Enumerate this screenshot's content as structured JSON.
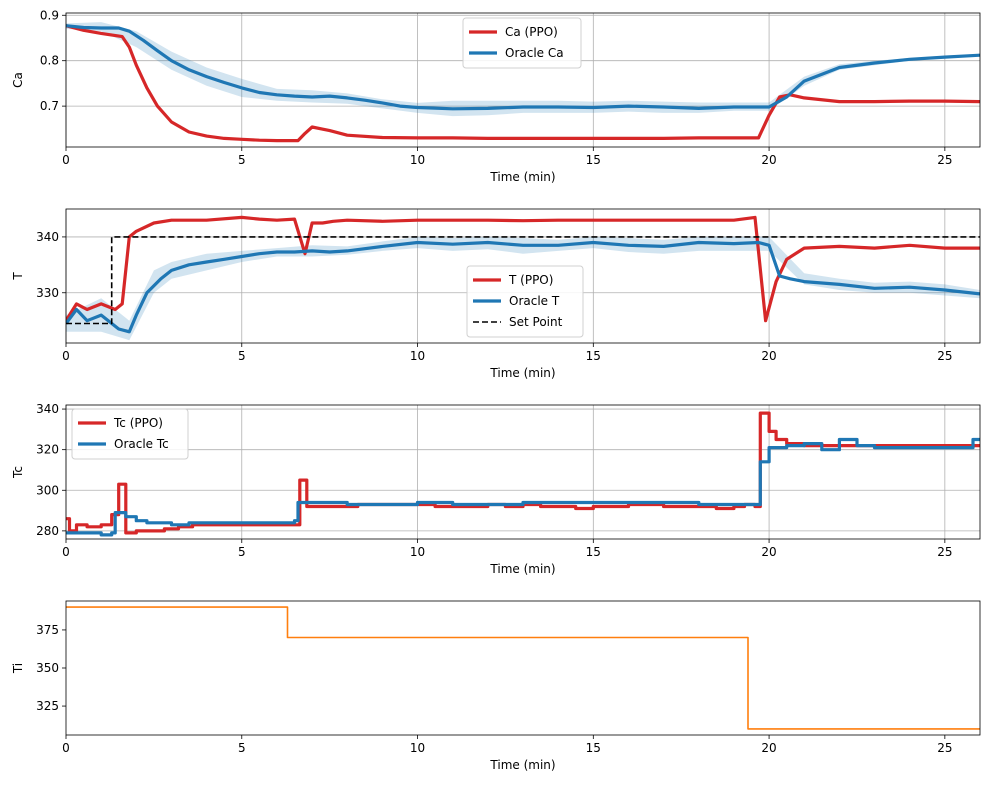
{
  "chart_data": [
    {
      "type": "line",
      "xlabel": "Time (min)",
      "ylabel": "Ca",
      "xlim": [
        0,
        26
      ],
      "ylim": [
        0.61,
        0.905
      ],
      "xticks": [
        0,
        5,
        10,
        15,
        20,
        25
      ],
      "yticks": [
        0.7,
        0.8,
        0.9
      ],
      "ytick_labels": [
        "0.7",
        "0.8",
        "0.9"
      ],
      "grid": true,
      "legend": "top-center",
      "series": [
        {
          "name": "Ca (PPO)",
          "color": "#d62728",
          "style": "solid",
          "x": [
            0,
            0.5,
            1,
            1.6,
            1.8,
            2.0,
            2.3,
            2.6,
            3.0,
            3.5,
            4,
            4.5,
            5,
            5.5,
            6,
            6.6,
            6.8,
            7.0,
            7.5,
            8,
            9,
            10,
            11,
            12,
            13,
            14,
            15,
            16,
            17,
            18,
            19,
            19.7,
            20.0,
            20.3,
            20.6,
            21,
            22,
            23,
            24,
            25,
            26
          ],
          "y": [
            0.877,
            0.867,
            0.86,
            0.853,
            0.83,
            0.79,
            0.74,
            0.7,
            0.665,
            0.643,
            0.634,
            0.629,
            0.627,
            0.625,
            0.624,
            0.624,
            0.64,
            0.654,
            0.646,
            0.636,
            0.631,
            0.63,
            0.63,
            0.629,
            0.629,
            0.629,
            0.629,
            0.629,
            0.629,
            0.63,
            0.63,
            0.63,
            0.68,
            0.72,
            0.725,
            0.718,
            0.71,
            0.71,
            0.711,
            0.711,
            0.71
          ]
        },
        {
          "name": "Oracle Ca",
          "color": "#1f77b4",
          "style": "solid",
          "x": [
            0,
            0.5,
            1,
            1.5,
            1.8,
            2.2,
            2.6,
            3,
            3.5,
            4,
            4.5,
            5,
            5.5,
            6,
            6.5,
            7,
            7.5,
            8,
            8.5,
            9,
            9.5,
            10,
            11,
            12,
            13,
            14,
            15,
            16,
            17,
            18,
            19,
            20,
            20.5,
            21,
            22,
            23,
            24,
            25,
            26
          ],
          "y": [
            0.877,
            0.873,
            0.872,
            0.872,
            0.865,
            0.845,
            0.822,
            0.8,
            0.78,
            0.765,
            0.752,
            0.74,
            0.73,
            0.725,
            0.722,
            0.72,
            0.722,
            0.718,
            0.713,
            0.707,
            0.7,
            0.697,
            0.694,
            0.695,
            0.698,
            0.698,
            0.697,
            0.7,
            0.698,
            0.695,
            0.698,
            0.698,
            0.72,
            0.755,
            0.785,
            0.795,
            0.803,
            0.808,
            0.812
          ]
        }
      ],
      "band": {
        "series": "Oracle Ca",
        "color": "#1f77b4",
        "x": [
          0,
          1,
          2,
          3,
          4,
          5,
          6,
          7,
          8,
          9,
          10,
          11,
          12,
          13,
          14,
          15,
          16,
          17,
          18,
          19,
          20,
          21,
          22,
          23,
          24,
          25,
          26
        ],
        "lower": [
          0.87,
          0.865,
          0.83,
          0.78,
          0.745,
          0.72,
          0.712,
          0.708,
          0.705,
          0.695,
          0.685,
          0.678,
          0.68,
          0.685,
          0.685,
          0.685,
          0.688,
          0.685,
          0.685,
          0.69,
          0.69,
          0.745,
          0.78,
          0.79,
          0.8,
          0.805,
          0.81
        ],
        "upper": [
          0.882,
          0.885,
          0.865,
          0.82,
          0.785,
          0.76,
          0.738,
          0.735,
          0.728,
          0.715,
          0.707,
          0.712,
          0.712,
          0.712,
          0.712,
          0.71,
          0.712,
          0.71,
          0.708,
          0.708,
          0.708,
          0.765,
          0.792,
          0.8,
          0.806,
          0.811,
          0.815
        ]
      }
    },
    {
      "type": "line",
      "xlabel": "Time (min)",
      "ylabel": "T",
      "xlim": [
        0,
        26
      ],
      "ylim": [
        321,
        345
      ],
      "xticks": [
        0,
        5,
        10,
        15,
        20,
        25
      ],
      "yticks": [
        330,
        340
      ],
      "ytick_labels": [
        "330",
        "340"
      ],
      "grid": true,
      "legend": "bottom-center",
      "series": [
        {
          "name": "T (PPO)",
          "color": "#d62728",
          "style": "solid",
          "x": [
            0,
            0.3,
            0.6,
            1.0,
            1.4,
            1.6,
            1.8,
            2.0,
            2.5,
            3,
            4,
            5,
            5.5,
            6,
            6.5,
            6.8,
            7.0,
            7.3,
            7.6,
            8,
            9,
            10,
            11,
            12,
            13,
            14,
            15,
            16,
            17,
            18,
            19,
            19.6,
            19.9,
            20.2,
            20.5,
            21,
            22,
            23,
            24,
            25,
            26
          ],
          "y": [
            325,
            328,
            327,
            328,
            327,
            328,
            340,
            341,
            342.5,
            343,
            343,
            343.5,
            343.2,
            343,
            343.2,
            337,
            342.5,
            342.5,
            342.8,
            343,
            342.8,
            343,
            343,
            343,
            342.9,
            343,
            343,
            343,
            343,
            343,
            343,
            343.5,
            325,
            332,
            336,
            338,
            338.3,
            338,
            338.5,
            338,
            338
          ]
        },
        {
          "name": "Oracle T",
          "color": "#1f77b4",
          "style": "solid",
          "x": [
            0,
            0.3,
            0.6,
            1.0,
            1.5,
            1.8,
            2.0,
            2.3,
            2.7,
            3,
            3.5,
            4,
            4.5,
            5,
            5.5,
            6,
            6.5,
            7,
            7.5,
            8,
            9,
            10,
            11,
            12,
            13,
            14,
            15,
            16,
            17,
            18,
            19,
            19.7,
            20.0,
            20.3,
            20.6,
            21,
            22,
            23,
            24,
            25,
            26
          ],
          "y": [
            324.5,
            327,
            325,
            326,
            323.5,
            323,
            326,
            330,
            332.5,
            334,
            335,
            335.5,
            336,
            336.5,
            337,
            337.3,
            337.3,
            337.5,
            337.3,
            337.5,
            338.3,
            339,
            338.7,
            339,
            338.5,
            338.5,
            339,
            338.5,
            338.3,
            339,
            338.8,
            339,
            338.5,
            333,
            332.5,
            332,
            331.5,
            330.8,
            331,
            330.5,
            329.8
          ]
        },
        {
          "name": "Set Point",
          "color": "#000000",
          "style": "dashed",
          "step": true,
          "x": [
            0,
            1.3,
            1.3,
            26
          ],
          "y": [
            324.5,
            324.5,
            340,
            340
          ]
        }
      ],
      "band": {
        "series": "Oracle T",
        "color": "#1f77b4",
        "x": [
          0,
          1,
          1.8,
          2.5,
          3,
          4,
          5,
          6,
          7,
          8,
          9,
          10,
          11,
          12,
          13,
          14,
          15,
          16,
          17,
          18,
          19,
          20,
          21,
          22,
          23,
          24,
          25,
          26
        ],
        "lower": [
          323,
          323,
          321.5,
          330,
          332.5,
          334,
          335.5,
          336.5,
          336.5,
          336.8,
          337.5,
          338,
          337.5,
          337.8,
          337,
          337.5,
          338,
          337.3,
          337,
          337.5,
          337.5,
          337.5,
          331.5,
          330.5,
          330,
          330,
          329.5,
          329
        ],
        "upper": [
          326,
          329,
          325,
          334,
          335.5,
          337,
          337.5,
          338,
          338.5,
          338.3,
          339.2,
          340,
          339.8,
          340,
          339.8,
          339.5,
          340,
          339.8,
          339.5,
          340,
          340,
          340,
          333.5,
          332.5,
          331.8,
          332,
          331.5,
          330.5
        ]
      }
    },
    {
      "type": "line",
      "xlabel": "Time (min)",
      "ylabel": "Tc",
      "xlim": [
        0,
        26
      ],
      "ylim": [
        276,
        342
      ],
      "xticks": [
        0,
        5,
        10,
        15,
        20,
        25
      ],
      "yticks": [
        280,
        300,
        320,
        340
      ],
      "ytick_labels": [
        "280",
        "300",
        "320",
        "340"
      ],
      "grid": true,
      "legend": "top-left",
      "series": [
        {
          "name": "Tc (PPO)",
          "color": "#d62728",
          "style": "solid",
          "step": true,
          "x": [
            0,
            0.1,
            0.3,
            0.6,
            1.0,
            1.3,
            1.5,
            1.7,
            2.0,
            2.5,
            2.8,
            3.2,
            3.6,
            4.0,
            4.5,
            5,
            5.5,
            6,
            6.5,
            6.65,
            6.85,
            7.3,
            7.8,
            8.3,
            9,
            10,
            10.5,
            11,
            11.5,
            12,
            12.5,
            13,
            13.5,
            14,
            14.5,
            15,
            15.5,
            16,
            16.5,
            17,
            17.5,
            18,
            18.5,
            19,
            19.3,
            19.6,
            19.75,
            20.0,
            20.2,
            20.5,
            21,
            21.5,
            22,
            23,
            24,
            25,
            26
          ],
          "y": [
            286,
            280,
            283,
            282,
            283,
            288,
            303,
            279,
            280,
            280,
            281,
            282,
            283,
            283,
            283,
            283,
            283,
            283,
            283,
            305,
            292,
            292,
            292,
            293,
            293,
            293,
            292,
            292,
            292,
            293,
            292,
            293,
            292,
            292,
            291,
            292,
            292,
            293,
            293,
            292,
            292,
            292,
            291,
            292,
            293,
            292,
            338,
            329,
            325,
            323,
            322,
            322,
            322,
            322,
            322,
            322,
            322
          ]
        },
        {
          "name": "Oracle Tc",
          "color": "#1f77b4",
          "style": "solid",
          "step": true,
          "x": [
            0,
            0.5,
            1.0,
            1.3,
            1.4,
            1.7,
            2.0,
            2.3,
            2.6,
            3,
            3.5,
            4,
            4.5,
            5,
            5.5,
            6,
            6.5,
            6.6,
            7,
            8,
            9,
            10,
            11,
            12,
            13,
            14,
            15,
            16,
            17,
            18,
            19,
            19.6,
            19.75,
            20.0,
            20.5,
            21,
            21.5,
            22,
            22.5,
            23,
            24,
            25,
            25.8,
            26
          ],
          "y": [
            279,
            279,
            278,
            279,
            289,
            287,
            285,
            284,
            284,
            283,
            284,
            284,
            284,
            284,
            284,
            284,
            285,
            294,
            294,
            293,
            293,
            294,
            293,
            293,
            294,
            294,
            294,
            294,
            294,
            293,
            293,
            293,
            314,
            321,
            322,
            323,
            320,
            325,
            322,
            321,
            321,
            321,
            325,
            325
          ]
        }
      ]
    },
    {
      "type": "line",
      "xlabel": "Time (min)",
      "ylabel": "Ti",
      "xlim": [
        0,
        26
      ],
      "ylim": [
        306,
        394
      ],
      "xticks": [
        0,
        5,
        10,
        15,
        20,
        25
      ],
      "yticks": [
        325,
        350,
        375
      ],
      "ytick_labels": [
        "325",
        "350",
        "375"
      ],
      "grid": false,
      "series": [
        {
          "name": "",
          "color": "#ff7f0e",
          "style": "solid",
          "step": true,
          "x": [
            0,
            6.3,
            6.3,
            19.4,
            19.4,
            26
          ],
          "y": [
            390,
            390,
            370,
            370,
            310,
            310
          ]
        }
      ]
    }
  ]
}
